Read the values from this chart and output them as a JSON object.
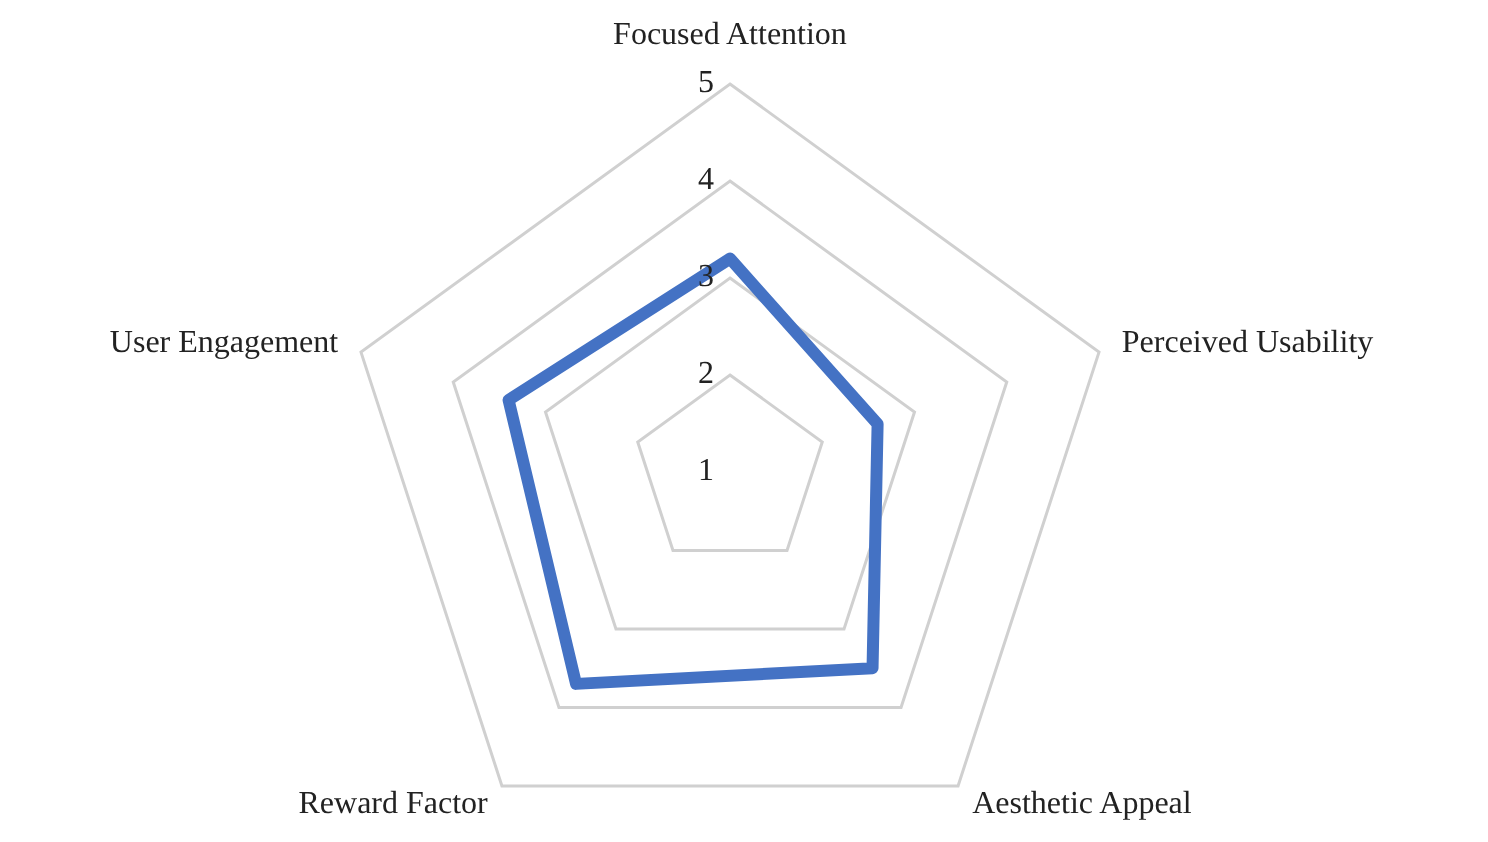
{
  "chart_data": {
    "type": "radar",
    "categories": [
      "Focused Attention",
      "Perceived Usability",
      "Aesthetic Appeal",
      "Reward Factor",
      "User Engagement"
    ],
    "series": [
      {
        "color": "#4472c4",
        "values": [
          3.2,
          2.6,
          3.5,
          3.7,
          3.4
        ]
      }
    ],
    "ylim": [
      1,
      5
    ],
    "yticks": [
      1,
      2,
      3,
      4,
      5
    ],
    "grid": true,
    "legend": false
  }
}
